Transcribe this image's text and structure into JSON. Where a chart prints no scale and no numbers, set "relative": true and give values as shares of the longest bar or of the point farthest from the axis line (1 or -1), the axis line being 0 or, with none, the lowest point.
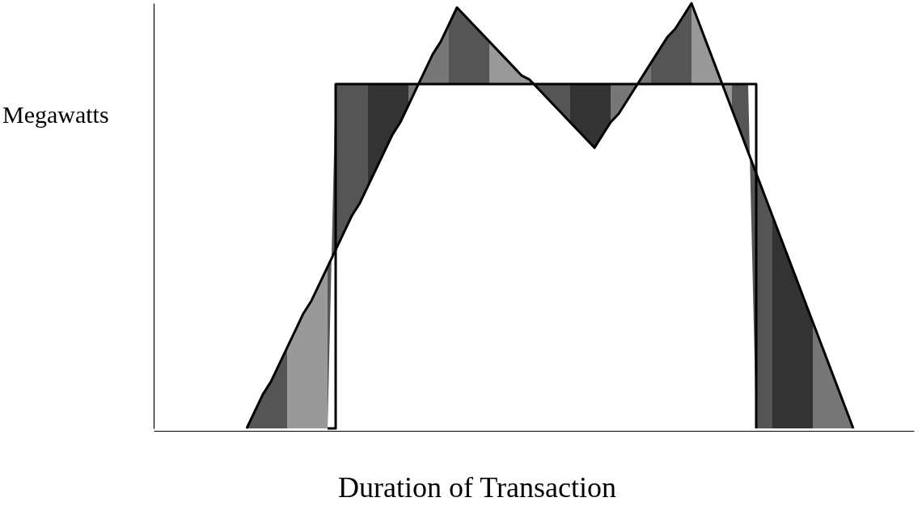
{
  "chart_data": {
    "type": "line",
    "xlabel": "Duration of Transaction",
    "ylabel": "Megawatts",
    "relative": true,
    "tick_labels": false,
    "marker": "none",
    "line_style": "solid",
    "categories": [
      null,
      null,
      null,
      null,
      null,
      null,
      null,
      null,
      null,
      null,
      null,
      null,
      null,
      null,
      null,
      null,
      null,
      null,
      null,
      null,
      null,
      null,
      null,
      null,
      null,
      null,
      null,
      null,
      null,
      null,
      null,
      null,
      null,
      null,
      null,
      null,
      null,
      null,
      null,
      null,
      null,
      null,
      null,
      null,
      null,
      null,
      null,
      null,
      null,
      null,
      null,
      null,
      null,
      null,
      null,
      null,
      null,
      null,
      null,
      null,
      null,
      null,
      null,
      null,
      null,
      null,
      null,
      null,
      null,
      null,
      null,
      null,
      null,
      null,
      null,
      null,
      null,
      null,
      null,
      null,
      null,
      null,
      null,
      null,
      null,
      null,
      null,
      null,
      null,
      null,
      null,
      null,
      null,
      null
    ],
    "series": [
      {
        "type": "step",
        "color": "#000000",
        "values": [
          null,
          null,
          null,
          null,
          null,
          null,
          null,
          null,
          null,
          null,
          null,
          null,
          null,
          null,
          null,
          null,
          null,
          null,
          null,
          null,
          null,
          0,
          0.81,
          0.81,
          0.81,
          0.81,
          0.81,
          0.81,
          0.81,
          0.81,
          0.81,
          0.81,
          0.81,
          0.81,
          0.81,
          0.81,
          0.81,
          0.81,
          0.81,
          0.81,
          0.81,
          0.81,
          0.81,
          0.81,
          0.81,
          0.81,
          0.81,
          0.81,
          0.81,
          0.81,
          0.81,
          0.81,
          0.81,
          0.81,
          0.81,
          0.81,
          0.81,
          0.81,
          0.81,
          0.81,
          0.81,
          0.81,
          0.81,
          0.81,
          0.81,
          0.81,
          0.81,
          0.81,
          0.81,
          0.81,
          0.81,
          0.81,
          0.81,
          0.81,
          0,
          null,
          null,
          null,
          null,
          null,
          null,
          null,
          null,
          null,
          null,
          null,
          null,
          null,
          null,
          null,
          null,
          null,
          null,
          null
        ]
      },
      {
        "type": "line",
        "color": "#000000",
        "values": [
          null,
          null,
          null,
          null,
          null,
          null,
          null,
          null,
          null,
          null,
          null,
          0,
          0.04,
          0.08,
          0.11,
          0.15,
          0.19,
          0.23,
          0.27,
          0.3,
          0.34,
          0.38,
          0.42,
          0.46,
          0.5,
          0.53,
          0.57,
          0.61,
          0.65,
          0.69,
          0.72,
          0.76,
          0.8,
          0.84,
          0.88,
          0.91,
          0.95,
          0.99,
          0.97,
          0.95,
          0.93,
          0.91,
          0.89,
          0.87,
          0.85,
          0.83,
          0.82,
          0.8,
          0.78,
          0.76,
          0.74,
          0.72,
          0.7,
          0.68,
          0.66,
          0.69,
          0.72,
          0.74,
          0.77,
          0.8,
          0.83,
          0.86,
          0.89,
          0.92,
          0.94,
          0.97,
          1,
          0.95,
          0.9,
          0.85,
          0.8,
          0.75,
          0.7,
          0.65,
          0.6,
          0.55,
          0.5,
          0.45,
          0.4,
          0.35,
          0.3,
          0.25,
          0.2,
          0.15,
          0.1,
          0.05,
          0,
          null,
          null,
          null,
          null,
          null,
          null,
          null
        ]
      }
    ]
  }
}
